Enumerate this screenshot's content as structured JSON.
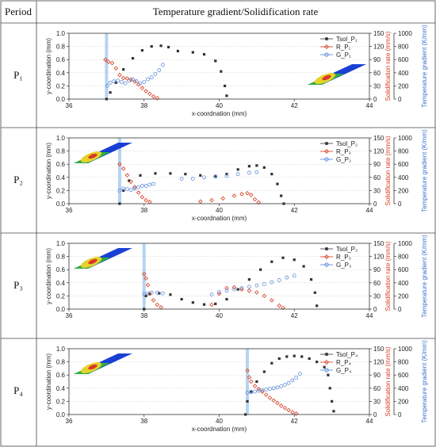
{
  "table": {
    "header_period": "Period",
    "header_content": "Temperature gradient/Solidification rate"
  },
  "chart_data": [
    {
      "type": "scatter",
      "period": "P₁",
      "xlabel": "x-coordnation (mm)",
      "ylabel_left": "y-coordination (mm)",
      "ylabel_right1": "Solidification rate (mm/s)",
      "ylabel_right2": "Temperature gradient (K/mm)",
      "xlim": [
        36,
        44
      ],
      "xticks": [
        "36",
        "38",
        "40",
        "42",
        "44"
      ],
      "ylim_left": [
        0,
        1
      ],
      "yticks_left": [
        "0.0",
        "0.2",
        "0.4",
        "0.6",
        "0.8",
        "1.0"
      ],
      "ylim_right1": [
        0,
        150
      ],
      "yticks_right1": [
        "0",
        "30",
        "60",
        "90",
        "120",
        "150"
      ],
      "ylim_right2": [
        0,
        1000
      ],
      "yticks_right2": [
        "0",
        "200",
        "400",
        "600",
        "800",
        "1000"
      ],
      "show_xlabel": true,
      "legend": {
        "tsol": "Tsol_P₁",
        "r": "R_P₁",
        "g": "G_P₁"
      },
      "laser_x": 37.0,
      "inset": "right",
      "series": [
        {
          "key": "tsol",
          "points": [
            [
              37.0,
              0.0
            ],
            [
              37.1,
              0.1
            ],
            [
              37.25,
              0.25
            ],
            [
              37.45,
              0.45
            ],
            [
              37.7,
              0.62
            ],
            [
              37.95,
              0.74
            ],
            [
              38.2,
              0.8
            ],
            [
              38.45,
              0.81
            ],
            [
              38.65,
              0.79
            ],
            [
              38.9,
              0.73
            ],
            [
              39.3,
              0.71
            ],
            [
              39.6,
              0.68
            ],
            [
              39.9,
              0.58
            ],
            [
              40.05,
              0.42
            ],
            [
              40.15,
              0.2
            ],
            [
              40.2,
              0.05
            ]
          ]
        },
        {
          "key": "r",
          "points": [
            [
              36.97,
              90
            ],
            [
              37.05,
              85
            ],
            [
              37.15,
              82
            ],
            [
              37.25,
              70
            ],
            [
              37.35,
              55
            ],
            [
              37.45,
              48
            ],
            [
              37.55,
              47
            ],
            [
              37.65,
              44
            ],
            [
              37.75,
              40
            ],
            [
              37.85,
              33
            ],
            [
              37.95,
              25
            ],
            [
              38.05,
              18
            ],
            [
              38.15,
              12
            ],
            [
              38.25,
              6
            ],
            [
              38.35,
              2
            ]
          ]
        },
        {
          "key": "g",
          "points": [
            [
              37.02,
              200
            ],
            [
              37.1,
              250
            ],
            [
              37.2,
              270
            ],
            [
              37.3,
              280
            ],
            [
              37.4,
              260
            ],
            [
              37.5,
              240
            ],
            [
              37.6,
              280
            ],
            [
              37.7,
              300
            ],
            [
              37.8,
              270
            ],
            [
              37.9,
              240
            ],
            [
              38.0,
              260
            ],
            [
              38.1,
              300
            ],
            [
              38.2,
              330
            ],
            [
              38.3,
              380
            ],
            [
              38.4,
              440
            ],
            [
              38.5,
              520
            ]
          ]
        }
      ]
    },
    {
      "type": "scatter",
      "period": "P₂",
      "xlabel": "x-coordnation (mm)",
      "ylabel_left": "y-coordination (mm)",
      "ylabel_right1": "Solidification rate (mm/s)",
      "ylabel_right2": "Temperature gradient (K/mm)",
      "xlim": [
        36,
        44
      ],
      "xticks": [
        "36",
        "38",
        "40",
        "42",
        "44"
      ],
      "ylim_left": [
        0,
        1
      ],
      "yticks_left": [
        "0.0",
        "0.2",
        "0.4",
        "0.6",
        "0.8",
        "1.0"
      ],
      "ylim_right1": [
        0,
        150
      ],
      "yticks_right1": [
        "0",
        "30",
        "60",
        "90",
        "120",
        "150"
      ],
      "ylim_right2": [
        0,
        1000
      ],
      "yticks_right2": [
        "0",
        "200",
        "400",
        "600",
        "800",
        "1000"
      ],
      "show_xlabel": true,
      "legend": {
        "tsol": "Tsol_P₂",
        "r": "R_P₂",
        "g": "G_P₂"
      },
      "laser_x": 37.35,
      "inset": "left",
      "series": [
        {
          "key": "tsol",
          "points": [
            [
              37.35,
              0.0
            ],
            [
              37.45,
              0.2
            ],
            [
              37.6,
              0.35
            ],
            [
              37.9,
              0.43
            ],
            [
              38.3,
              0.46
            ],
            [
              38.7,
              0.46
            ],
            [
              39.1,
              0.45
            ],
            [
              39.5,
              0.43
            ],
            [
              39.9,
              0.42
            ],
            [
              40.2,
              0.45
            ],
            [
              40.5,
              0.52
            ],
            [
              40.8,
              0.57
            ],
            [
              41.0,
              0.58
            ],
            [
              41.2,
              0.55
            ],
            [
              41.4,
              0.45
            ],
            [
              41.55,
              0.3
            ],
            [
              41.65,
              0.12
            ],
            [
              41.72,
              0.0
            ]
          ]
        },
        {
          "key": "r",
          "points": [
            [
              37.35,
              90
            ],
            [
              37.45,
              80
            ],
            [
              37.55,
              65
            ],
            [
              37.65,
              50
            ],
            [
              37.75,
              38
            ],
            [
              37.85,
              25
            ],
            [
              37.95,
              15
            ],
            [
              38.05,
              8
            ],
            [
              38.15,
              4
            ],
            [
              39.5,
              5
            ],
            [
              39.8,
              8
            ],
            [
              40.1,
              12
            ],
            [
              40.4,
              18
            ],
            [
              40.6,
              22
            ],
            [
              40.75,
              24
            ],
            [
              40.85,
              20
            ],
            [
              40.95,
              10
            ],
            [
              41.05,
              3
            ]
          ]
        },
        {
          "key": "g",
          "points": [
            [
              37.35,
              200
            ],
            [
              37.45,
              230
            ],
            [
              37.55,
              220
            ],
            [
              37.65,
              210
            ],
            [
              37.75,
              230
            ],
            [
              37.85,
              250
            ],
            [
              37.95,
              270
            ],
            [
              38.05,
              270
            ],
            [
              38.15,
              290
            ],
            [
              38.25,
              300
            ],
            [
              39.0,
              380
            ],
            [
              39.3,
              380
            ],
            [
              39.6,
              400
            ],
            [
              39.9,
              410
            ],
            [
              40.2,
              420
            ],
            [
              40.5,
              450
            ],
            [
              40.8,
              470
            ],
            [
              41.0,
              480
            ]
          ]
        }
      ]
    },
    {
      "type": "scatter",
      "period": "P₃",
      "xlabel": "x-coordnation (mm)",
      "ylabel_left": "y-coordination (mm)",
      "ylabel_right1": "Solidification rate (mm/s)",
      "ylabel_right2": "Temperature gradient (K/mm)",
      "xlim": [
        36,
        44
      ],
      "xticks": [
        "36",
        "38",
        "40",
        "42",
        "44"
      ],
      "ylim_left": [
        0,
        1
      ],
      "yticks_left": [
        "0.0",
        "0.2",
        "0.4",
        "0.6",
        "0.8",
        "1.0"
      ],
      "ylim_right1": [
        0,
        150
      ],
      "yticks_right1": [
        "0",
        "30",
        "60",
        "90",
        "120",
        "150"
      ],
      "ylim_right2": [
        0,
        1000
      ],
      "yticks_right2": [
        "0",
        "200",
        "400",
        "600",
        "800",
        "1000"
      ],
      "show_xlabel": false,
      "legend": {
        "tsol": "Tsol_P₃",
        "r": "R_P₃",
        "g": "G_P₃"
      },
      "laser_x": 38.0,
      "inset": "left",
      "series": [
        {
          "key": "tsol",
          "points": [
            [
              38.0,
              0.0
            ],
            [
              38.05,
              0.2
            ],
            [
              38.15,
              0.23
            ],
            [
              38.4,
              0.24
            ],
            [
              38.7,
              0.22
            ],
            [
              39.0,
              0.15
            ],
            [
              39.3,
              0.1
            ],
            [
              39.6,
              0.07
            ],
            [
              39.9,
              0.08
            ],
            [
              40.2,
              0.15
            ],
            [
              40.5,
              0.3
            ],
            [
              40.8,
              0.45
            ],
            [
              41.1,
              0.6
            ],
            [
              41.4,
              0.72
            ],
            [
              41.7,
              0.78
            ],
            [
              42.0,
              0.75
            ],
            [
              42.25,
              0.65
            ],
            [
              42.45,
              0.45
            ],
            [
              42.55,
              0.25
            ],
            [
              42.6,
              0.05
            ]
          ]
        },
        {
          "key": "r",
          "points": [
            [
              38.0,
              80
            ],
            [
              38.05,
              70
            ],
            [
              38.1,
              55
            ],
            [
              38.15,
              35
            ],
            [
              38.25,
              20
            ],
            [
              38.35,
              10
            ],
            [
              38.45,
              4
            ],
            [
              39.8,
              10
            ],
            [
              40.0,
              35
            ],
            [
              40.2,
              48
            ],
            [
              40.4,
              50
            ],
            [
              40.6,
              45
            ],
            [
              40.8,
              42
            ],
            [
              41.0,
              38
            ],
            [
              41.2,
              30
            ],
            [
              41.4,
              20
            ],
            [
              41.6,
              8
            ],
            [
              41.7,
              3
            ]
          ]
        },
        {
          "key": "g",
          "points": [
            [
              38.0,
              230
            ],
            [
              38.1,
              240
            ],
            [
              38.2,
              250
            ],
            [
              38.35,
              250
            ],
            [
              38.5,
              240
            ],
            [
              39.8,
              220
            ],
            [
              40.0,
              260
            ],
            [
              40.2,
              280
            ],
            [
              40.4,
              300
            ],
            [
              40.6,
              320
            ],
            [
              40.8,
              340
            ],
            [
              41.0,
              360
            ],
            [
              41.2,
              380
            ],
            [
              41.4,
              410
            ],
            [
              41.6,
              440
            ],
            [
              41.8,
              480
            ],
            [
              42.0,
              510
            ]
          ]
        }
      ]
    },
    {
      "type": "scatter",
      "period": "P₄",
      "xlabel": "x-coordnation (mm)",
      "ylabel_left": "y-coordination (mm)",
      "ylabel_right1": "Solidification rate (mm/s)",
      "ylabel_right2": "Temperature gradient (K/mm)",
      "xlim": [
        36,
        44
      ],
      "xticks": [
        "36",
        "38",
        "40",
        "42",
        "44"
      ],
      "ylim_left": [
        0,
        1
      ],
      "yticks_left": [
        "0.0",
        "0.2",
        "0.4",
        "0.6",
        "0.8",
        "1.0"
      ],
      "ylim_right1": [
        0,
        150
      ],
      "yticks_right1": [
        "0",
        "30",
        "60",
        "90",
        "120",
        "150"
      ],
      "ylim_right2": [
        0,
        1000
      ],
      "yticks_right2": [
        "0",
        "200",
        "400",
        "600",
        "800",
        "1000"
      ],
      "show_xlabel": true,
      "legend": {
        "tsol": "Tsol_P₄",
        "r": "R_P₄",
        "g": "G_P₄"
      },
      "laser_x": 40.75,
      "inset": "left",
      "series": [
        {
          "key": "tsol",
          "points": [
            [
              40.7,
              0.0
            ],
            [
              40.75,
              0.2
            ],
            [
              40.85,
              0.35
            ],
            [
              41.0,
              0.5
            ],
            [
              41.2,
              0.65
            ],
            [
              41.4,
              0.78
            ],
            [
              41.6,
              0.85
            ],
            [
              41.8,
              0.88
            ],
            [
              42.0,
              0.89
            ],
            [
              42.2,
              0.88
            ],
            [
              42.4,
              0.85
            ],
            [
              42.6,
              0.8
            ],
            [
              42.8,
              0.72
            ],
            [
              42.9,
              0.6
            ],
            [
              42.95,
              0.4
            ],
            [
              43.0,
              0.2
            ],
            [
              43.05,
              0.05
            ]
          ]
        },
        {
          "key": "r",
          "points": [
            [
              40.75,
              100
            ],
            [
              40.8,
              85
            ],
            [
              40.85,
              75
            ],
            [
              40.95,
              65
            ],
            [
              41.05,
              58
            ],
            [
              41.15,
              52
            ],
            [
              41.25,
              45
            ],
            [
              41.35,
              38
            ],
            [
              41.45,
              32
            ],
            [
              41.55,
              26
            ],
            [
              41.65,
              20
            ],
            [
              41.75,
              15
            ],
            [
              41.85,
              10
            ],
            [
              41.95,
              5
            ],
            [
              42.05,
              2
            ]
          ]
        },
        {
          "key": "g",
          "points": [
            [
              40.75,
              330
            ],
            [
              40.85,
              340
            ],
            [
              40.95,
              350
            ],
            [
              41.05,
              360
            ],
            [
              41.15,
              370
            ],
            [
              41.25,
              380
            ],
            [
              41.35,
              390
            ],
            [
              41.45,
              400
            ],
            [
              41.55,
              410
            ],
            [
              41.65,
              430
            ],
            [
              41.75,
              450
            ],
            [
              41.85,
              480
            ],
            [
              41.95,
              520
            ],
            [
              42.05,
              560
            ],
            [
              42.15,
              620
            ]
          ]
        }
      ]
    }
  ]
}
